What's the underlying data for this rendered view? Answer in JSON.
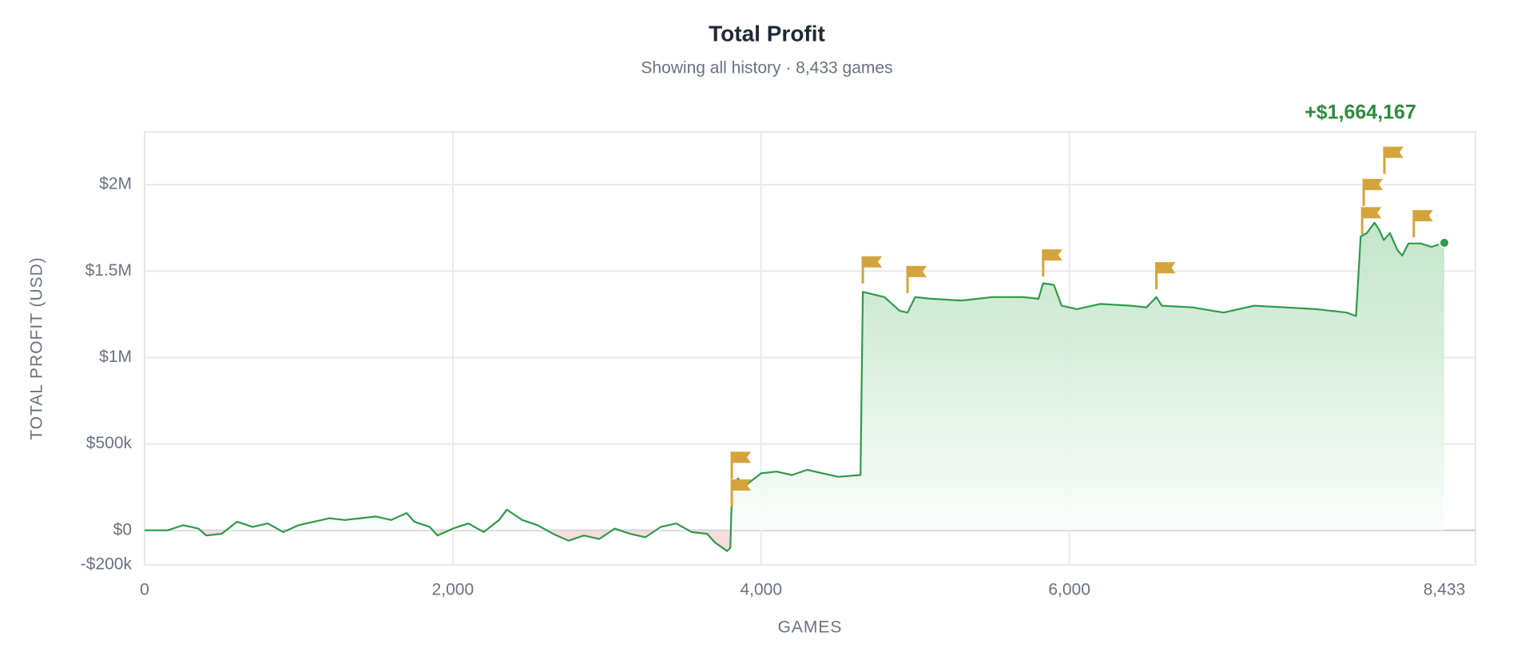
{
  "chart_data": {
    "type": "line",
    "title": "Total Profit",
    "subtitle": "Showing all history · 8,433 games",
    "annotation": "+$1,664,167",
    "xlabel": "GAMES",
    "ylabel": "TOTAL PROFIT (USD)",
    "xlim": [
      0,
      8635
    ],
    "xticks": [
      0,
      {
        "value": 2000,
        "label": "2,000"
      },
      {
        "value": 4000,
        "label": "4,000"
      },
      {
        "value": 6000,
        "label": "6,000"
      },
      {
        "value": 8433,
        "label": "8,433"
      }
    ],
    "ylim": [
      -200000,
      2306000
    ],
    "yticks": [
      {
        "value": -200000,
        "label": "-$200k"
      },
      {
        "value": 0,
        "label": "$0"
      },
      {
        "value": 500000,
        "label": "$500k"
      },
      {
        "value": 1000000,
        "label": "$1M"
      },
      {
        "value": 1500000,
        "label": "$1.5M"
      },
      {
        "value": 2000000,
        "label": "$2M"
      }
    ],
    "grid": true,
    "series": [
      {
        "name": "Total Profit",
        "color": "#2e9a4a",
        "x": [
          0,
          150,
          250,
          350,
          400,
          500,
          600,
          700,
          800,
          900,
          1000,
          1100,
          1200,
          1300,
          1400,
          1500,
          1600,
          1700,
          1750,
          1850,
          1900,
          2000,
          2100,
          2200,
          2300,
          2350,
          2450,
          2550,
          2650,
          2750,
          2850,
          2950,
          3050,
          3150,
          3250,
          3350,
          3450,
          3550,
          3650,
          3700,
          3780,
          3800,
          3812,
          3850,
          3900,
          4000,
          4100,
          4200,
          4300,
          4400,
          4500,
          4645,
          4660,
          4800,
          4900,
          4950,
          5000,
          5100,
          5300,
          5500,
          5700,
          5800,
          5830,
          5900,
          5950,
          6050,
          6200,
          6400,
          6500,
          6565,
          6600,
          6800,
          7000,
          7200,
          7400,
          7600,
          7800,
          7860,
          7890,
          7930,
          7980,
          8010,
          8040,
          8080,
          8130,
          8160,
          8200,
          8280,
          8350,
          8433
        ],
        "values": [
          0,
          0,
          30000,
          10000,
          -30000,
          -20000,
          50000,
          20000,
          40000,
          -10000,
          30000,
          50000,
          70000,
          60000,
          70000,
          80000,
          60000,
          100000,
          50000,
          20000,
          -30000,
          10000,
          40000,
          -10000,
          60000,
          120000,
          60000,
          30000,
          -20000,
          -60000,
          -30000,
          -50000,
          10000,
          -20000,
          -40000,
          20000,
          40000,
          -10000,
          -20000,
          -70000,
          -120000,
          -100000,
          250000,
          300000,
          260000,
          330000,
          340000,
          320000,
          350000,
          330000,
          310000,
          320000,
          1380000,
          1350000,
          1270000,
          1260000,
          1350000,
          1340000,
          1330000,
          1350000,
          1350000,
          1340000,
          1430000,
          1420000,
          1300000,
          1280000,
          1310000,
          1300000,
          1290000,
          1350000,
          1300000,
          1290000,
          1260000,
          1300000,
          1290000,
          1280000,
          1260000,
          1240000,
          1700000,
          1720000,
          1780000,
          1740000,
          1680000,
          1720000,
          1620000,
          1590000,
          1660000,
          1660000,
          1640000,
          1664167
        ]
      }
    ],
    "flags": {
      "color": "#d4a43c",
      "x": [
        3810,
        3810,
        4660,
        4950,
        5830,
        6565,
        7900,
        7910,
        8044,
        8235
      ],
      "y": [
        455000,
        295000,
        1586000,
        1530000,
        1626000,
        1552000,
        1870000,
        2034000,
        2220000,
        1853000
      ]
    }
  }
}
